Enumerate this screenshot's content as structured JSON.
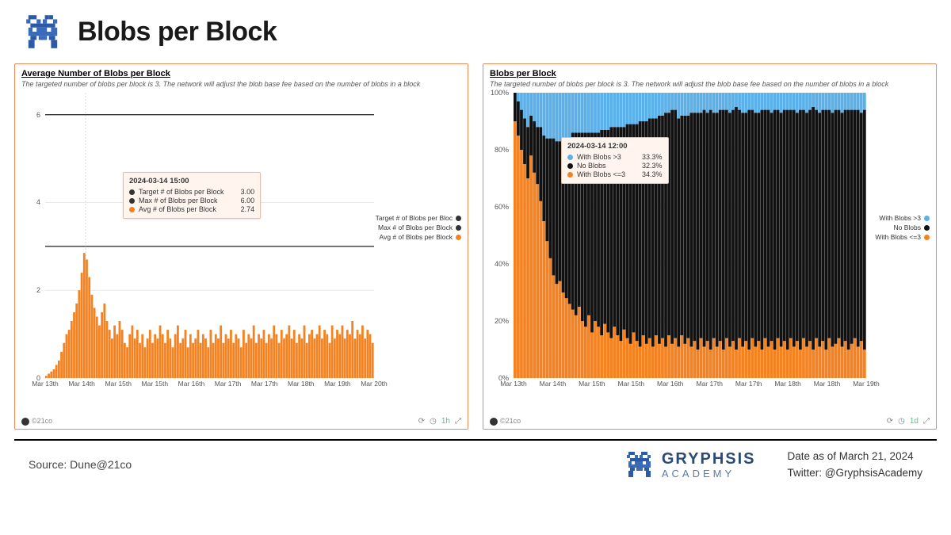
{
  "header": {
    "title": "Blobs per Block"
  },
  "chart1": {
    "title": "Average Number of Blobs per Block",
    "subtitle": "The targeted number of blobs per block is 3. The network will adjust the blob base fee based on the number of blobs in a block",
    "type": "bar+line",
    "ylim": [
      0,
      6.5
    ],
    "yticks": [
      0,
      2,
      4,
      6
    ],
    "xticks": [
      "Mar 13th",
      "Mar 14th",
      "Mar 15th",
      "Mar 15th",
      "Mar 16th",
      "Mar 17th",
      "Mar 17th",
      "Mar 18th",
      "Mar 19th",
      "Mar 20th"
    ],
    "series_color": "#f58220",
    "target_line": {
      "y": 3.0,
      "color": "#333333"
    },
    "max_line": {
      "y": 6.0,
      "color": "#333333"
    },
    "bars": [
      0.05,
      0.1,
      0.15,
      0.2,
      0.3,
      0.4,
      0.6,
      0.8,
      1.0,
      1.1,
      1.3,
      1.5,
      1.7,
      2.0,
      2.4,
      2.85,
      2.7,
      2.3,
      1.9,
      1.6,
      1.4,
      1.2,
      1.5,
      1.7,
      1.3,
      1.1,
      0.9,
      1.2,
      1.0,
      1.3,
      1.1,
      0.8,
      0.7,
      1.0,
      1.2,
      0.9,
      1.1,
      0.8,
      1.0,
      0.7,
      0.9,
      1.1,
      0.8,
      1.0,
      0.9,
      1.2,
      1.0,
      0.8,
      1.1,
      0.9,
      0.7,
      1.0,
      1.2,
      0.8,
      0.9,
      1.1,
      0.7,
      1.0,
      0.8,
      0.9,
      1.1,
      0.8,
      1.0,
      0.9,
      0.7,
      1.1,
      0.8,
      1.0,
      0.9,
      1.2,
      0.8,
      1.0,
      0.9,
      1.1,
      0.8,
      1.0,
      0.9,
      0.7,
      1.1,
      0.8,
      1.0,
      0.9,
      1.2,
      0.8,
      1.0,
      0.9,
      1.1,
      0.8,
      1.0,
      0.9,
      1.2,
      1.0,
      0.8,
      1.1,
      0.9,
      1.0,
      1.2,
      0.9,
      1.1,
      0.8,
      1.0,
      0.9,
      1.2,
      0.8,
      1.0,
      1.1,
      0.9,
      1.0,
      1.2,
      0.9,
      1.1,
      1.0,
      0.8,
      1.2,
      0.9,
      1.1,
      1.0,
      1.2,
      0.9,
      1.1,
      1.0,
      1.3,
      0.9,
      1.1,
      1.0,
      1.2,
      0.9,
      1.1,
      1.0,
      0.8
    ],
    "legend": [
      {
        "label": "Target # of Blobs per Bloc",
        "color": "#333333"
      },
      {
        "label": "Max # of Blobs per Block",
        "color": "#333333"
      },
      {
        "label": "Avg # of Blobs per Block",
        "color": "#f58220"
      }
    ],
    "tooltip": {
      "title": "2024-03-14 15:00",
      "rows": [
        {
          "dot": "#333333",
          "label": "Target # of Blobs per Block",
          "value": "3.00"
        },
        {
          "dot": "#333333",
          "label": "Max # of Blobs per Block",
          "value": "6.00"
        },
        {
          "dot": "#f58220",
          "label": "Avg # of Blobs per Block",
          "value": "2.74"
        }
      ]
    },
    "footer_source": "©21co",
    "footer_tag": "1h"
  },
  "chart2": {
    "title": "Blobs per Block",
    "subtitle": "The targeted number of blobs per block is 3. The network will adjust the blob base fee based on the number of blobs in a block",
    "type": "stacked-bar-pct",
    "ylim": [
      0,
      100
    ],
    "yticks": [
      "0%",
      "20%",
      "40%",
      "60%",
      "80%",
      "100%"
    ],
    "xticks": [
      "Mar 13th",
      "Mar 14th",
      "Mar 15th",
      "Mar 15th",
      "Mar 16th",
      "Mar 17th",
      "Mar 17th",
      "Mar 18th",
      "Mar 18th",
      "Mar 19th"
    ],
    "colors": {
      "orange": "#f58220",
      "black": "#111111",
      "blue": "#5ab0e8"
    },
    "stacks": [
      [
        90,
        10,
        0
      ],
      [
        85,
        12,
        3
      ],
      [
        80,
        14,
        6
      ],
      [
        75,
        16,
        9
      ],
      [
        70,
        18,
        12
      ],
      [
        78,
        14,
        8
      ],
      [
        72,
        18,
        10
      ],
      [
        68,
        20,
        12
      ],
      [
        62,
        26,
        12
      ],
      [
        55,
        30,
        15
      ],
      [
        48,
        36,
        16
      ],
      [
        42,
        42,
        16
      ],
      [
        36,
        48,
        16
      ],
      [
        33,
        50,
        17
      ],
      [
        34,
        49,
        17
      ],
      [
        30,
        54,
        16
      ],
      [
        28,
        56,
        16
      ],
      [
        26,
        58,
        16
      ],
      [
        24,
        62,
        14
      ],
      [
        22,
        64,
        14
      ],
      [
        25,
        61,
        14
      ],
      [
        20,
        66,
        14
      ],
      [
        18,
        68,
        14
      ],
      [
        22,
        64,
        14
      ],
      [
        16,
        70,
        14
      ],
      [
        20,
        66,
        14
      ],
      [
        18,
        68,
        14
      ],
      [
        15,
        72,
        13
      ],
      [
        19,
        68,
        13
      ],
      [
        16,
        71,
        13
      ],
      [
        14,
        74,
        12
      ],
      [
        18,
        70,
        12
      ],
      [
        15,
        73,
        12
      ],
      [
        13,
        75,
        12
      ],
      [
        17,
        71,
        12
      ],
      [
        14,
        75,
        11
      ],
      [
        12,
        77,
        11
      ],
      [
        16,
        73,
        11
      ],
      [
        13,
        76,
        11
      ],
      [
        11,
        79,
        10
      ],
      [
        15,
        75,
        10
      ],
      [
        12,
        78,
        10
      ],
      [
        14,
        77,
        9
      ],
      [
        11,
        80,
        9
      ],
      [
        15,
        76,
        9
      ],
      [
        12,
        80,
        8
      ],
      [
        14,
        78,
        8
      ],
      [
        11,
        82,
        7
      ],
      [
        15,
        78,
        7
      ],
      [
        12,
        82,
        6
      ],
      [
        14,
        80,
        6
      ],
      [
        11,
        80,
        9
      ],
      [
        15,
        77,
        8
      ],
      [
        12,
        80,
        8
      ],
      [
        14,
        78,
        8
      ],
      [
        11,
        82,
        7
      ],
      [
        13,
        80,
        7
      ],
      [
        10,
        83,
        7
      ],
      [
        14,
        79,
        7
      ],
      [
        11,
        83,
        6
      ],
      [
        13,
        80,
        7
      ],
      [
        10,
        84,
        6
      ],
      [
        14,
        79,
        7
      ],
      [
        11,
        82,
        7
      ],
      [
        13,
        81,
        6
      ],
      [
        10,
        84,
        6
      ],
      [
        14,
        80,
        6
      ],
      [
        11,
        82,
        7
      ],
      [
        13,
        81,
        6
      ],
      [
        10,
        85,
        5
      ],
      [
        14,
        80,
        6
      ],
      [
        11,
        82,
        7
      ],
      [
        13,
        80,
        7
      ],
      [
        10,
        84,
        6
      ],
      [
        14,
        80,
        6
      ],
      [
        11,
        82,
        7
      ],
      [
        13,
        80,
        7
      ],
      [
        10,
        84,
        6
      ],
      [
        14,
        80,
        6
      ],
      [
        11,
        83,
        6
      ],
      [
        13,
        80,
        7
      ],
      [
        10,
        84,
        6
      ],
      [
        14,
        80,
        6
      ],
      [
        11,
        82,
        7
      ],
      [
        13,
        81,
        6
      ],
      [
        10,
        84,
        6
      ],
      [
        14,
        80,
        6
      ],
      [
        11,
        83,
        6
      ],
      [
        13,
        80,
        7
      ],
      [
        10,
        84,
        6
      ],
      [
        14,
        80,
        6
      ],
      [
        11,
        82,
        7
      ],
      [
        13,
        81,
        6
      ],
      [
        10,
        85,
        5
      ],
      [
        14,
        80,
        6
      ],
      [
        11,
        82,
        7
      ],
      [
        13,
        81,
        6
      ],
      [
        10,
        84,
        6
      ],
      [
        14,
        80,
        6
      ],
      [
        11,
        82,
        7
      ],
      [
        12,
        82,
        6
      ],
      [
        14,
        80,
        6
      ],
      [
        11,
        82,
        7
      ],
      [
        13,
        81,
        6
      ],
      [
        10,
        84,
        6
      ],
      [
        12,
        82,
        6
      ],
      [
        14,
        80,
        6
      ],
      [
        11,
        83,
        6
      ],
      [
        13,
        80,
        7
      ],
      [
        10,
        84,
        6
      ]
    ],
    "legend": [
      {
        "label": "With Blobs >3",
        "color": "#5ab0e8"
      },
      {
        "label": "No Blobs",
        "color": "#111111"
      },
      {
        "label": "With Blobs <=3",
        "color": "#f58220"
      }
    ],
    "tooltip": {
      "title": "2024-03-14 12:00",
      "rows": [
        {
          "dot": "#5ab0e8",
          "label": "With Blobs >3",
          "value": "33.3%"
        },
        {
          "dot": "#111111",
          "label": "No Blobs",
          "value": "32.3%"
        },
        {
          "dot": "#f58220",
          "label": "With Blobs <=3",
          "value": "34.3%"
        }
      ]
    },
    "footer_source": "©21co",
    "footer_tag": "1d"
  },
  "footer": {
    "source": "Source: Dune@21co",
    "brand_l1": "GRYPHSIS",
    "brand_l2": "ACADEMY",
    "date": "Date as of March 21, 2024",
    "twitter": "Twitter: @GryphsisAcademy"
  }
}
